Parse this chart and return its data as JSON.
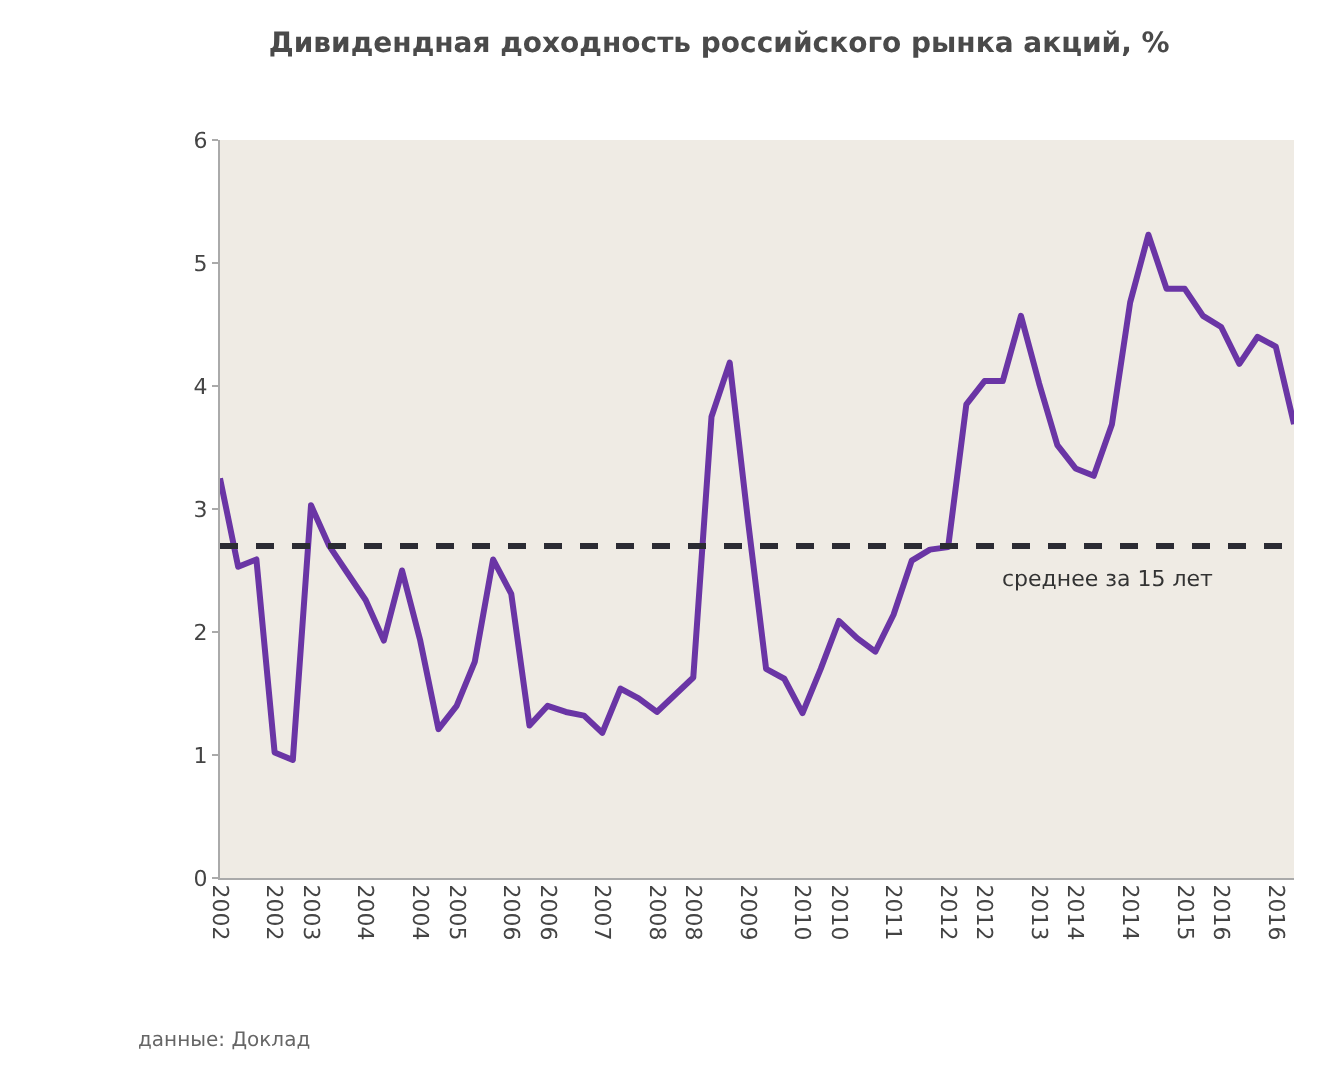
{
  "chart_data": {
    "type": "line",
    "title": "Дивидендная доходность российского рынка акций, %",
    "categories": [
      "2002",
      null,
      null,
      "2002",
      null,
      "2003",
      null,
      null,
      "2004",
      null,
      null,
      "2004",
      null,
      "2005",
      null,
      null,
      "2006",
      null,
      "2006",
      null,
      null,
      "2007",
      null,
      null,
      "2008",
      null,
      "2008",
      null,
      null,
      "2009",
      null,
      null,
      "2010",
      null,
      "2010",
      null,
      null,
      "2011",
      null,
      null,
      "2012",
      null,
      "2012",
      null,
      null,
      "2013",
      null,
      "2014",
      null,
      null,
      "2014",
      null,
      null,
      "2015",
      null,
      "2016",
      null,
      null,
      "2016",
      null
    ],
    "series": [
      {
        "color": "#6a35a5",
        "values": [
          3.25,
          2.53,
          2.59,
          1.02,
          0.96,
          3.03,
          2.7,
          2.48,
          2.26,
          1.93,
          2.5,
          1.93,
          1.21,
          1.4,
          1.76,
          2.59,
          2.31,
          1.24,
          1.4,
          1.35,
          1.32,
          1.18,
          1.54,
          1.46,
          1.35,
          1.49,
          1.63,
          3.75,
          4.19,
          2.91,
          1.7,
          1.62,
          1.34,
          1.7,
          2.09,
          1.95,
          1.84,
          2.14,
          2.58,
          2.67,
          2.69,
          3.85,
          4.04,
          4.04,
          4.57,
          4.02,
          3.52,
          3.33,
          3.27,
          3.69,
          4.68,
          5.23,
          4.79,
          4.79,
          4.57,
          4.48,
          4.18,
          4.4,
          4.32,
          3.69
        ]
      }
    ],
    "ylim": [
      0,
      6
    ],
    "yticks": [
      0,
      1,
      2,
      3,
      4,
      5,
      6
    ],
    "ref_lines": [
      {
        "axis": "y",
        "value": 2.7,
        "label": "среднее за 15 лет",
        "color": "#2b2b33",
        "line_style": "dashed"
      }
    ],
    "annotations": [
      "данные: Доклад"
    ],
    "grid": false,
    "marker": "none",
    "line_style": "solid"
  }
}
